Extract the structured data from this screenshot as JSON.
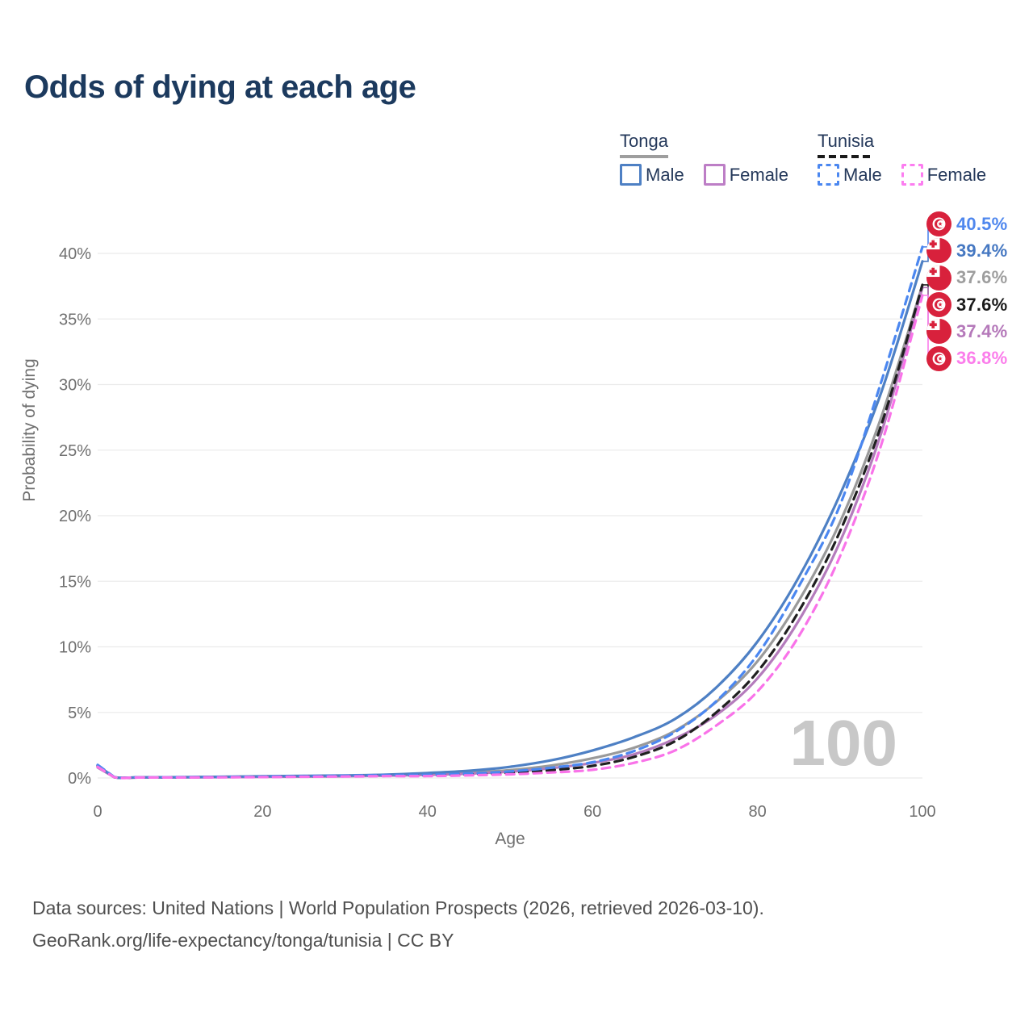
{
  "title": "Odds of dying at each age",
  "watermark": "100",
  "legend": {
    "groups": [
      {
        "label": "Tonga",
        "line_style": "solid",
        "line_color": "#9e9e9e",
        "items": [
          {
            "label": "Male",
            "swatch_color": "#4e80c4",
            "swatch_style": "solid"
          },
          {
            "label": "Female",
            "swatch_color": "#bd7ec6",
            "swatch_style": "solid"
          }
        ]
      },
      {
        "label": "Tunisia",
        "line_style": "dashed",
        "line_color": "#1a1a1a",
        "items": [
          {
            "label": "Male",
            "swatch_color": "#4b87f0",
            "swatch_style": "dashed"
          },
          {
            "label": "Female",
            "swatch_color": "#fc7df0",
            "swatch_style": "dashed"
          }
        ]
      }
    ]
  },
  "chart_data": {
    "type": "line",
    "title": "Odds of dying at each age",
    "xlabel": "Age",
    "ylabel": "Probability of dying",
    "x_ticks": [
      0,
      20,
      40,
      60,
      80,
      100
    ],
    "y_ticks_percent": [
      0,
      5,
      10,
      15,
      20,
      25,
      30,
      35,
      40
    ],
    "xlim": [
      0,
      100
    ],
    "ylim_percent": [
      0,
      43
    ],
    "grid": "horizontal",
    "legend_position": "top-right",
    "x": [
      0,
      2,
      5,
      10,
      15,
      20,
      25,
      30,
      35,
      40,
      45,
      50,
      55,
      60,
      65,
      70,
      75,
      80,
      85,
      90,
      95,
      100
    ],
    "series": [
      {
        "name": "Tonga Both sexes",
        "country": "Tonga",
        "sex": "Both",
        "style": "solid",
        "color": "#9a9a9a",
        "values": [
          0.88,
          0.06,
          0.04,
          0.05,
          0.08,
          0.11,
          0.13,
          0.17,
          0.22,
          0.3,
          0.42,
          0.6,
          0.95,
          1.5,
          2.3,
          3.6,
          5.8,
          8.9,
          13.5,
          19.5,
          27.5,
          37.6
        ]
      },
      {
        "name": "Tonga Female",
        "country": "Tonga",
        "sex": "Female",
        "style": "solid",
        "color": "#b47cbc",
        "values": [
          0.8,
          0.06,
          0.04,
          0.05,
          0.06,
          0.08,
          0.1,
          0.13,
          0.17,
          0.24,
          0.33,
          0.48,
          0.75,
          1.15,
          1.8,
          3.0,
          4.8,
          7.6,
          12.0,
          18.0,
          26.3,
          37.4
        ]
      },
      {
        "name": "Tonga Male",
        "country": "Tonga",
        "sex": "Male",
        "style": "solid",
        "color": "#4e80c4",
        "values": [
          0.95,
          0.07,
          0.05,
          0.06,
          0.09,
          0.13,
          0.16,
          0.2,
          0.26,
          0.38,
          0.55,
          0.85,
          1.35,
          2.1,
          3.1,
          4.5,
          6.9,
          10.4,
          15.3,
          21.6,
          29.4,
          39.4
        ]
      },
      {
        "name": "Tunisia Both sexes",
        "country": "Tunisia",
        "sex": "Both",
        "style": "dashed",
        "color": "#1f1f1f",
        "values": [
          0.92,
          0.07,
          0.04,
          0.05,
          0.07,
          0.1,
          0.12,
          0.15,
          0.19,
          0.19,
          0.27,
          0.4,
          0.6,
          0.92,
          1.6,
          2.8,
          5.0,
          8.1,
          12.7,
          18.8,
          26.9,
          37.6
        ]
      },
      {
        "name": "Tunisia Male",
        "country": "Tunisia",
        "sex": "Male",
        "style": "dashed",
        "color": "#4b87f0",
        "values": [
          1.0,
          0.08,
          0.05,
          0.06,
          0.08,
          0.11,
          0.14,
          0.17,
          0.22,
          0.24,
          0.34,
          0.5,
          0.78,
          1.2,
          2.05,
          3.5,
          5.85,
          9.4,
          14.6,
          20.8,
          30.2,
          40.5
        ]
      },
      {
        "name": "Tunisia Female",
        "country": "Tunisia",
        "sex": "Female",
        "style": "dashed",
        "color": "#f973e9",
        "values": [
          0.85,
          0.06,
          0.04,
          0.04,
          0.05,
          0.07,
          0.09,
          0.11,
          0.14,
          0.14,
          0.2,
          0.28,
          0.42,
          0.62,
          1.15,
          2.1,
          4.0,
          6.6,
          10.8,
          16.9,
          25.4,
          36.8
        ]
      }
    ],
    "end_labels": [
      {
        "text": "40.5%",
        "flag": "tunisia",
        "color": "#4f87ee",
        "series": "Tunisia Male"
      },
      {
        "text": "39.4%",
        "flag": "tonga",
        "color": "#4678c2",
        "series": "Tonga Male"
      },
      {
        "text": "37.6%",
        "flag": "tonga",
        "color": "#9e9e9e",
        "series": "Tonga Both sexes"
      },
      {
        "text": "37.6%",
        "flag": "tunisia",
        "color": "#1a1a1a",
        "series": "Tunisia Both sexes"
      },
      {
        "text": "37.4%",
        "flag": "tonga",
        "color": "#b579ba",
        "series": "Tonga Female"
      },
      {
        "text": "36.8%",
        "flag": "tunisia",
        "color": "#fb7deb",
        "series": "Tunisia Female"
      }
    ]
  },
  "footer": {
    "line1": "Data sources: United Nations | World Population Prospects (2026, retrieved 2026-03-10).",
    "line2": "GeoRank.org/life-expectancy/tonga/tunisia | CC BY"
  }
}
